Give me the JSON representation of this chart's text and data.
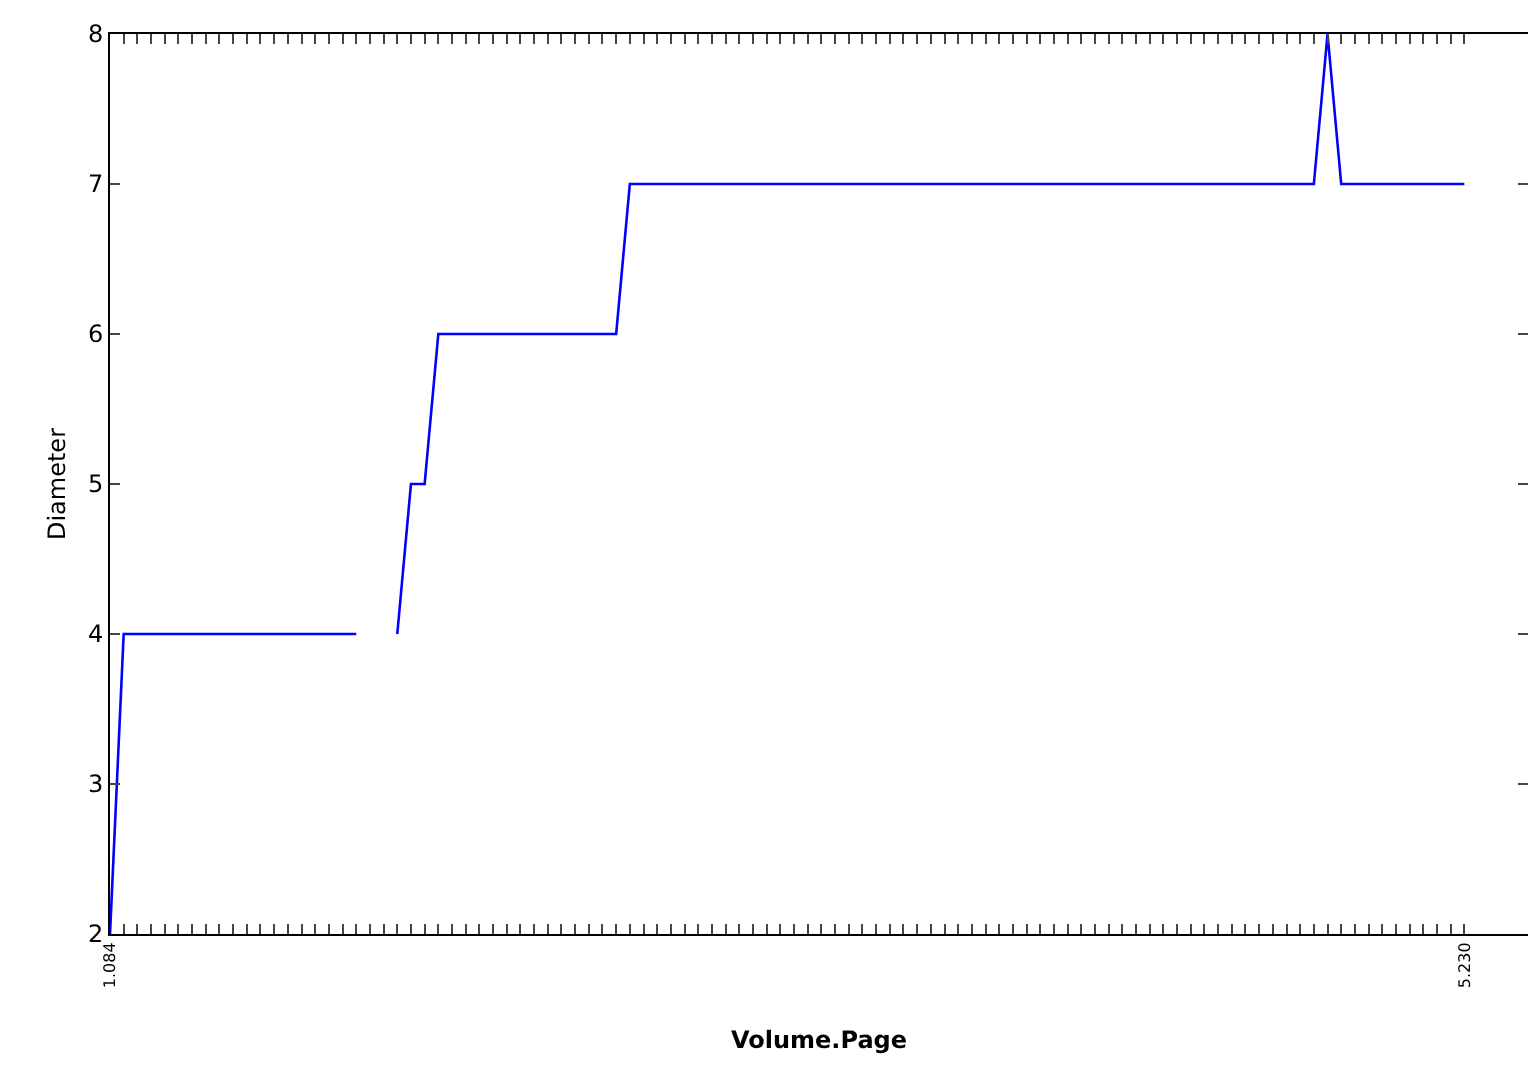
{
  "chart_data": {
    "type": "line",
    "xlabel": "Volume.Page",
    "ylabel": "Diameter",
    "categories": [
      "1.084",
      null,
      null,
      null,
      null,
      null,
      null,
      null,
      null,
      null,
      null,
      null,
      null,
      null,
      null,
      null,
      null,
      null,
      null,
      null,
      null,
      null,
      null,
      null,
      null,
      null,
      null,
      null,
      null,
      null,
      null,
      null,
      null,
      null,
      null,
      null,
      null,
      null,
      null,
      null,
      null,
      null,
      null,
      null,
      null,
      null,
      null,
      null,
      null,
      null,
      null,
      null,
      null,
      null,
      null,
      null,
      null,
      null,
      null,
      null,
      null,
      null,
      null,
      null,
      null,
      null,
      null,
      null,
      null,
      null,
      null,
      null,
      null,
      null,
      null,
      null,
      null,
      null,
      null,
      null,
      null,
      null,
      null,
      null,
      null,
      null,
      null,
      null,
      null,
      null,
      null,
      null,
      null,
      null,
      null,
      null,
      null,
      null,
      null,
      "5.230"
    ],
    "series": [
      {
        "color": "#0000ff",
        "values": [
          2,
          4,
          4,
          4,
          4,
          4,
          4,
          4,
          4,
          4,
          4,
          4,
          4,
          4,
          4,
          4,
          4,
          4,
          4,
          null,
          null,
          4,
          5,
          5,
          6,
          6,
          6,
          6,
          6,
          6,
          6,
          6,
          6,
          6,
          6,
          6,
          6,
          6,
          7,
          7,
          7,
          7,
          7,
          7,
          7,
          7,
          7,
          7,
          7,
          7,
          7,
          7,
          7,
          7,
          7,
          7,
          7,
          7,
          7,
          7,
          7,
          7,
          7,
          7,
          7,
          7,
          7,
          7,
          7,
          7,
          7,
          7,
          7,
          7,
          7,
          7,
          7,
          7,
          7,
          7,
          7,
          7,
          7,
          7,
          7,
          7,
          7,
          7,
          7,
          8,
          7,
          7,
          7,
          7,
          7,
          7,
          7,
          7,
          7,
          7
        ]
      }
    ],
    "ylim": [
      2,
      8
    ],
    "yticks": [
      2,
      3,
      4,
      5,
      6,
      7,
      8
    ],
    "grid": false,
    "marker": "none",
    "line_style": "solid"
  }
}
